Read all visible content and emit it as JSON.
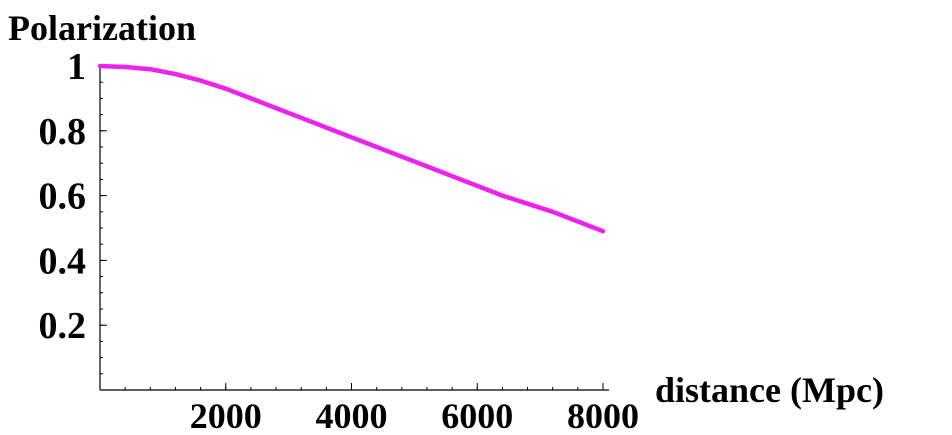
{
  "chart_data": {
    "type": "line",
    "title": "",
    "xlabel": "distance (Mpc)",
    "ylabel": "Polarization",
    "xlim": [
      0,
      8000
    ],
    "ylim": [
      0,
      1
    ],
    "x_ticks": [
      2000,
      4000,
      6000,
      8000
    ],
    "x_tick_labels": [
      "2000",
      "4000",
      "6000",
      "8000"
    ],
    "y_ticks": [
      0.2,
      0.4,
      0.6,
      0.8,
      1
    ],
    "y_tick_labels": [
      "0.2",
      "0.4",
      "0.6",
      "0.8",
      "1"
    ],
    "grid": false,
    "series": [
      {
        "color": "#ee22ee",
        "x": [
          0,
          400,
          800,
          1200,
          1600,
          2000,
          2400,
          2800,
          3200,
          3600,
          4000,
          4400,
          4800,
          5200,
          5600,
          6000,
          6400,
          6800,
          7200,
          7600,
          8000
        ],
        "y": [
          1.0,
          0.997,
          0.99,
          0.975,
          0.955,
          0.93,
          0.9,
          0.87,
          0.84,
          0.81,
          0.78,
          0.75,
          0.72,
          0.69,
          0.66,
          0.63,
          0.6,
          0.575,
          0.55,
          0.52,
          0.49
        ]
      }
    ]
  }
}
